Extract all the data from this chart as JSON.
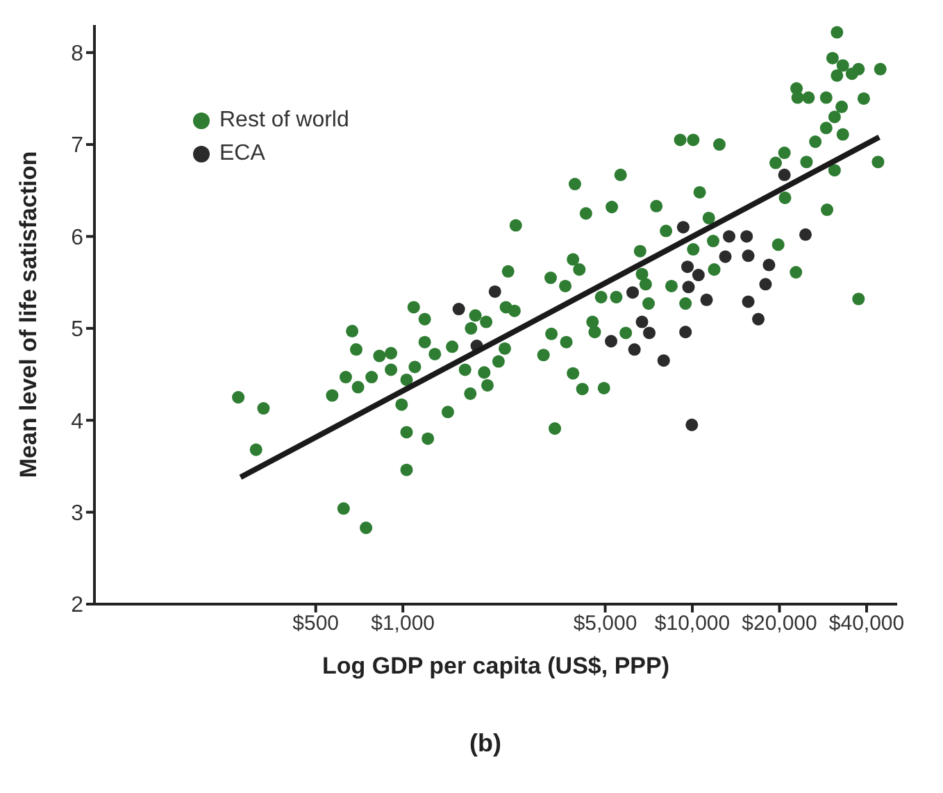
{
  "chart_data": {
    "type": "scatter",
    "xlabel": "Log GDP per capita (US$, PPP)",
    "ylabel": "Mean level of life satisfaction",
    "annotations": [
      "(b)"
    ],
    "log": "x",
    "xlim": [
      86,
      51000
    ],
    "xticks": [
      {
        "value": 500,
        "label": "$500"
      },
      {
        "value": 1000,
        "label": "$1,000"
      },
      {
        "value": 5000,
        "label": "$5,000"
      },
      {
        "value": 10000,
        "label": "$10,000"
      },
      {
        "value": 20000,
        "label": "$20,000"
      },
      {
        "value": 40000,
        "label": "$40,000"
      }
    ],
    "ylim": [
      2,
      8.3
    ],
    "yticks": [
      2,
      3,
      4,
      5,
      6,
      7,
      8
    ],
    "grid": false,
    "legend": "top left",
    "marker": "circle",
    "series": [
      {
        "name": "Rest of world",
        "color": "#2e7d32",
        "x": [
          270,
          330,
          311,
          668,
          690,
          570,
          635,
          700,
          780,
          830,
          910,
          910,
          624,
          746,
          2455,
          4290,
          5270,
          2310,
          1090,
          1190,
          1780,
          1940,
          1720,
          2270,
          2430,
          3870,
          4070,
          3240,
          3640,
          4840,
          5460,
          1190,
          1290,
          1480,
          2250,
          2140,
          1640,
          1910,
          1960,
          1710,
          1100,
          1030,
          990,
          1430,
          1030,
          1220,
          1030,
          3060,
          3260,
          3670,
          4520,
          4600,
          3870,
          4170,
          4950,
          3350,
          9080,
          10070,
          12400,
          5650,
          3930,
          7510,
          10600,
          11400,
          8110,
          11800,
          10070,
          19800,
          22800,
          29200,
          37500,
          11900,
          6700,
          6900,
          6600,
          8470,
          9470,
          7060,
          5890,
          20900,
          24800,
          31000,
          43800,
          19400,
          20800,
          26600,
          29000,
          33100,
          31000,
          31600,
          30500,
          33100,
          35600,
          37500,
          31600,
          44600,
          22900,
          23100,
          25200,
          29000,
          39100,
          32800
        ],
        "values": [
          4.25,
          4.13,
          3.68,
          4.97,
          4.77,
          4.27,
          4.47,
          4.36,
          4.47,
          4.7,
          4.73,
          4.55,
          3.04,
          2.83,
          6.12,
          6.25,
          6.32,
          5.62,
          5.23,
          5.1,
          5.14,
          5.07,
          5.0,
          5.23,
          5.19,
          5.75,
          5.64,
          5.55,
          5.46,
          5.34,
          5.34,
          4.85,
          4.72,
          4.8,
          4.78,
          4.64,
          4.55,
          4.52,
          4.38,
          4.29,
          4.58,
          4.44,
          4.17,
          4.09,
          3.87,
          3.8,
          3.46,
          4.71,
          4.94,
          4.85,
          5.07,
          4.96,
          4.51,
          4.34,
          4.35,
          3.91,
          7.05,
          7.05,
          7.0,
          6.67,
          6.57,
          6.33,
          6.48,
          6.2,
          6.06,
          5.95,
          5.86,
          5.91,
          5.61,
          6.29,
          5.32,
          5.64,
          5.59,
          5.48,
          5.84,
          5.46,
          5.27,
          5.27,
          4.95,
          6.42,
          6.81,
          6.72,
          6.81,
          6.8,
          6.91,
          7.03,
          7.18,
          7.11,
          7.3,
          8.22,
          7.94,
          7.86,
          7.77,
          7.82,
          7.75,
          7.82,
          7.61,
          7.51,
          7.51,
          7.51,
          7.5,
          7.41
        ]
      },
      {
        "name": "ECA",
        "color": "#2b2b2b",
        "x": [
          1560,
          2080,
          1800,
          5240,
          9300,
          13400,
          15400,
          13000,
          15600,
          18400,
          17900,
          24600,
          15600,
          16900,
          9620,
          10500,
          9700,
          11200,
          6220,
          6700,
          7100,
          6310,
          7960,
          9470,
          9960,
          20800
        ],
        "values": [
          5.21,
          5.4,
          4.81,
          4.86,
          6.1,
          6.0,
          6.0,
          5.78,
          5.79,
          5.69,
          5.48,
          6.02,
          5.29,
          5.1,
          5.67,
          5.58,
          5.45,
          5.31,
          5.39,
          5.07,
          4.95,
          4.77,
          4.65,
          4.96,
          3.95,
          6.67
        ]
      },
      {
        "type": "line",
        "color": "#1a1a1a",
        "marker": "none",
        "line_style": "solid",
        "x": [
          275,
          44200
        ],
        "values": [
          3.38,
          7.08
        ]
      }
    ]
  }
}
